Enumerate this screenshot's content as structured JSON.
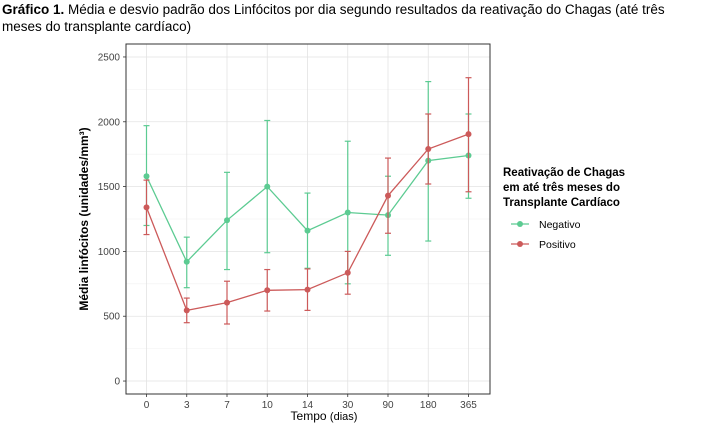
{
  "caption": {
    "label": "Gráfico 1.",
    "text": " Média e desvio padrão dos Linfócitos por dia segundo resultados da reativação do Chagas (até três meses do transplante cardíaco)"
  },
  "chart_data": {
    "type": "line",
    "title": "",
    "xlabel_main": "Tempo",
    "xlabel_unit": "(dias)",
    "ylabel": "Média linfócitos (unidades/mm³)",
    "categories": [
      "0",
      "3",
      "7",
      "10",
      "14",
      "30",
      "90",
      "180",
      "365"
    ],
    "ylim": [
      -100,
      2600
    ],
    "yticks": [
      0,
      500,
      1000,
      1500,
      2000,
      2500
    ],
    "grid": true,
    "legend": {
      "position": "right",
      "title_lines": [
        "Reativação de Chagas",
        "em até três meses do",
        "Transplante Cardíaco"
      ]
    },
    "series": [
      {
        "name": "Negativo",
        "color": "#5ccb92",
        "mean": [
          1580,
          920,
          1240,
          1500,
          1160,
          1300,
          1280,
          1700,
          1740
        ],
        "lower": [
          1200,
          720,
          860,
          990,
          870,
          750,
          970,
          1080,
          1410
        ],
        "upper": [
          1970,
          1110,
          1610,
          2010,
          1450,
          1850,
          1580,
          2310,
          2060
        ]
      },
      {
        "name": "Positivo",
        "color": "#cc5a5a",
        "mean": [
          1340,
          545,
          605,
          700,
          705,
          835,
          1430,
          1790,
          1905
        ],
        "lower": [
          1130,
          450,
          440,
          540,
          545,
          670,
          1140,
          1520,
          1460
        ],
        "upper": [
          1550,
          640,
          770,
          860,
          865,
          1000,
          1720,
          2060,
          2340
        ]
      }
    ]
  }
}
